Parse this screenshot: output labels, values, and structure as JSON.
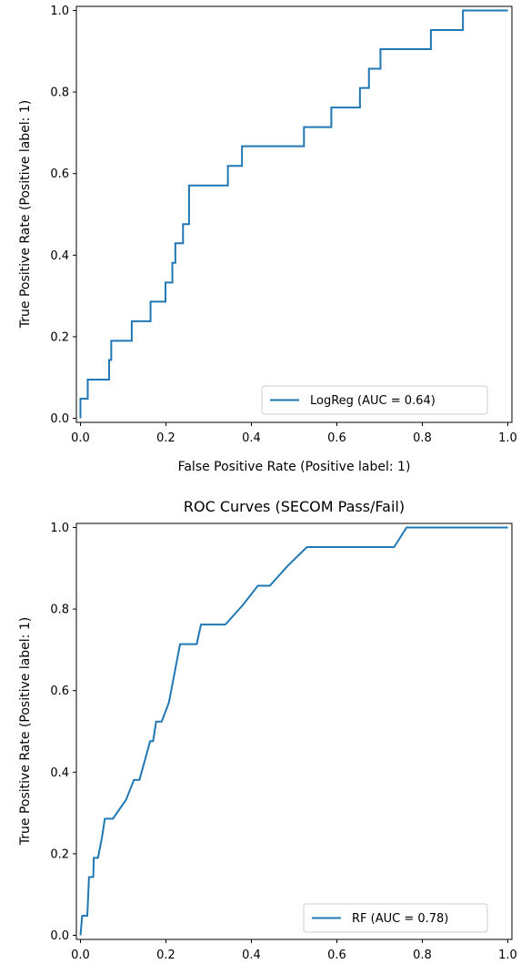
{
  "chart_data": [
    {
      "type": "line",
      "title": "",
      "xlabel": "False Positive Rate (Positive label: 1)",
      "ylabel": "True Positive Rate (Positive label: 1)",
      "xlim": [
        0,
        1
      ],
      "ylim": [
        0,
        1
      ],
      "xticks": [
        "0.0",
        "0.2",
        "0.4",
        "0.6",
        "0.8",
        "1.0"
      ],
      "yticks": [
        "0.0",
        "0.2",
        "0.4",
        "0.6",
        "0.8",
        "1.0"
      ],
      "grid": false,
      "legend_position": "lower-right",
      "series": [
        {
          "name": "LogReg (AUC = 0.64)",
          "color": "#1f77b4",
          "step": true,
          "points": [
            [
              0.0,
              0.0
            ],
            [
              0.0,
              0.048
            ],
            [
              0.017,
              0.048
            ],
            [
              0.017,
              0.095
            ],
            [
              0.067,
              0.095
            ],
            [
              0.067,
              0.143
            ],
            [
              0.072,
              0.143
            ],
            [
              0.072,
              0.19
            ],
            [
              0.12,
              0.19
            ],
            [
              0.12,
              0.238
            ],
            [
              0.164,
              0.238
            ],
            [
              0.164,
              0.286
            ],
            [
              0.199,
              0.286
            ],
            [
              0.199,
              0.333
            ],
            [
              0.215,
              0.333
            ],
            [
              0.215,
              0.381
            ],
            [
              0.222,
              0.381
            ],
            [
              0.222,
              0.429
            ],
            [
              0.24,
              0.429
            ],
            [
              0.24,
              0.476
            ],
            [
              0.254,
              0.476
            ],
            [
              0.254,
              0.571
            ],
            [
              0.345,
              0.571
            ],
            [
              0.345,
              0.619
            ],
            [
              0.378,
              0.619
            ],
            [
              0.378,
              0.667
            ],
            [
              0.523,
              0.667
            ],
            [
              0.523,
              0.714
            ],
            [
              0.587,
              0.714
            ],
            [
              0.587,
              0.762
            ],
            [
              0.654,
              0.762
            ],
            [
              0.654,
              0.81
            ],
            [
              0.675,
              0.81
            ],
            [
              0.675,
              0.857
            ],
            [
              0.702,
              0.857
            ],
            [
              0.702,
              0.905
            ],
            [
              0.82,
              0.905
            ],
            [
              0.82,
              0.952
            ],
            [
              0.895,
              0.952
            ],
            [
              0.895,
              1.0
            ],
            [
              1.0,
              1.0
            ]
          ]
        }
      ]
    },
    {
      "type": "line",
      "title": "ROC Curves (SECOM Pass/Fail)",
      "xlabel": "",
      "ylabel": "True Positive Rate (Positive label: 1)",
      "xlim": [
        0,
        1
      ],
      "ylim": [
        0,
        1
      ],
      "xticks": [
        "0.0",
        "0.2",
        "0.4",
        "0.6",
        "0.8",
        "1.0"
      ],
      "yticks": [
        "0.0",
        "0.2",
        "0.4",
        "0.6",
        "0.8",
        "1.0"
      ],
      "grid": false,
      "legend_position": "lower-right",
      "series": [
        {
          "name": "RF (AUC = 0.78)",
          "color": "#1f77b4",
          "step": false,
          "points": [
            [
              0.0,
              0.0
            ],
            [
              0.004,
              0.048
            ],
            [
              0.016,
              0.048
            ],
            [
              0.018,
              0.095
            ],
            [
              0.02,
              0.143
            ],
            [
              0.03,
              0.143
            ],
            [
              0.031,
              0.19
            ],
            [
              0.041,
              0.19
            ],
            [
              0.05,
              0.238
            ],
            [
              0.057,
              0.286
            ],
            [
              0.076,
              0.286
            ],
            [
              0.107,
              0.333
            ],
            [
              0.125,
              0.381
            ],
            [
              0.138,
              0.381
            ],
            [
              0.163,
              0.476
            ],
            [
              0.17,
              0.476
            ],
            [
              0.177,
              0.524
            ],
            [
              0.19,
              0.524
            ],
            [
              0.207,
              0.571
            ],
            [
              0.233,
              0.714
            ],
            [
              0.272,
              0.714
            ],
            [
              0.282,
              0.762
            ],
            [
              0.339,
              0.762
            ],
            [
              0.38,
              0.81
            ],
            [
              0.415,
              0.857
            ],
            [
              0.443,
              0.857
            ],
            [
              0.484,
              0.905
            ],
            [
              0.53,
              0.952
            ],
            [
              0.734,
              0.952
            ],
            [
              0.763,
              1.0
            ],
            [
              1.0,
              1.0
            ]
          ]
        }
      ]
    }
  ]
}
